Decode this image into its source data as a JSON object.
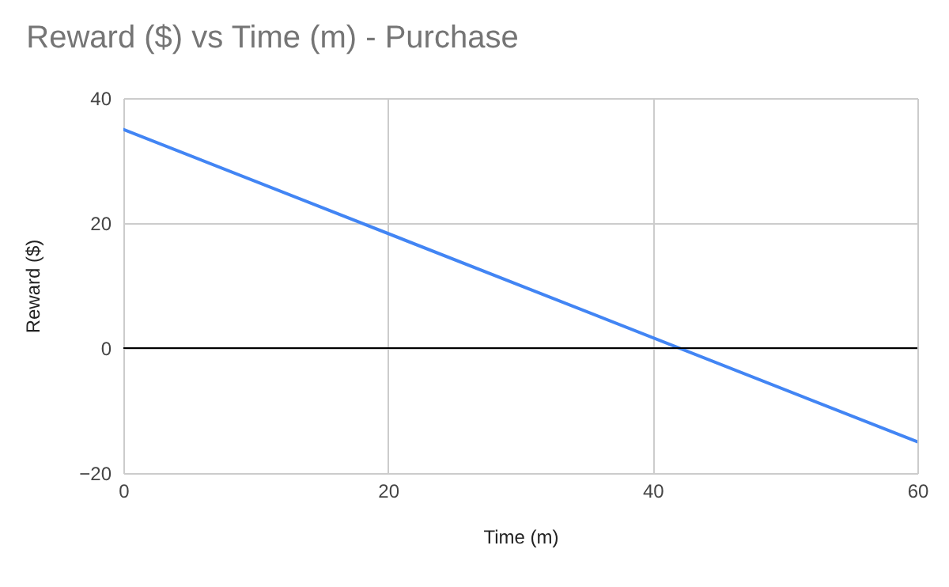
{
  "chart_data": {
    "type": "line",
    "title": "Reward ($) vs Time (m) - Purchase",
    "xlabel": "Time (m)",
    "ylabel": "Reward ($)",
    "x": [
      0,
      60
    ],
    "series": [
      {
        "color": "#4285f4",
        "values": [
          35,
          -15
        ]
      }
    ],
    "xlim": [
      0,
      60
    ],
    "xticks": [
      0,
      20,
      40,
      60
    ],
    "ylim": [
      -20,
      40
    ],
    "yticks": [
      -20,
      0,
      20,
      40
    ],
    "grid": true,
    "marker": "none",
    "line_style": "solid",
    "ref_lines": [
      {
        "axis": "y",
        "value": 0,
        "color": "#000000"
      }
    ]
  }
}
